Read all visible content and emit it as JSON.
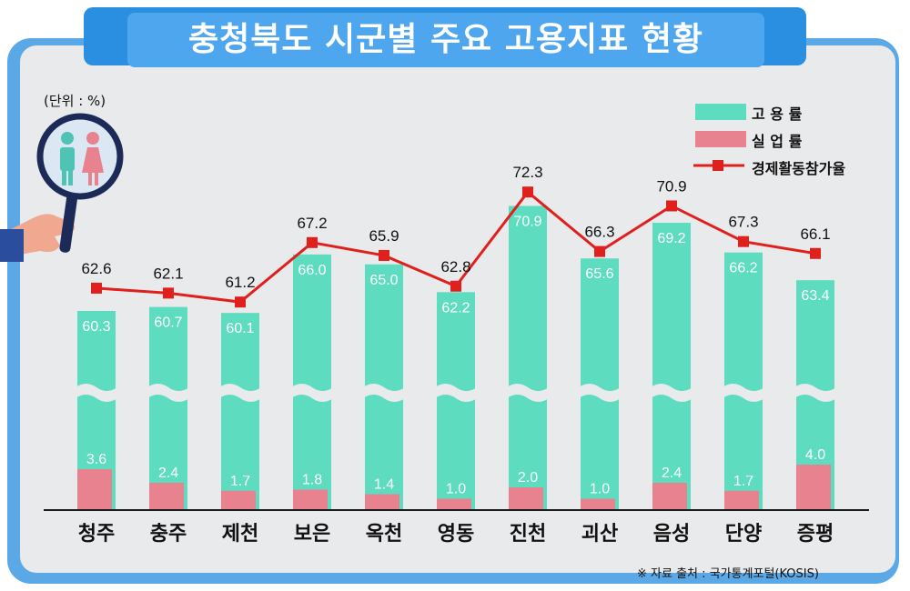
{
  "title": "충청북도 시군별 주요 고용지표 현황",
  "unit_label": "(단위 : %)",
  "source": "※  자료 출처 : 국가통계포털(KOSIS)",
  "colors": {
    "employment": "#5ddcc0",
    "unemployment": "#e9828f",
    "participation": "#e0201c",
    "frame": "#5aa8e6",
    "panel": "#e9eaec"
  },
  "icons": [
    "magnifier-icon",
    "male-person-icon",
    "female-person-icon",
    "hand-icon"
  ],
  "legend": [
    {
      "label": "고 용 률",
      "kind": "bar",
      "color": "#5ddcc0"
    },
    {
      "label": "실 업 률",
      "kind": "bar",
      "color": "#e9828f"
    },
    {
      "label": "경제활동참가율",
      "kind": "line",
      "color": "#e0201c"
    }
  ],
  "chart_data": {
    "type": "bar",
    "axis_broken": true,
    "gridlines": false,
    "legend_position": "top-right",
    "categories": [
      "청주",
      "충주",
      "제천",
      "보은",
      "옥천",
      "영동",
      "진천",
      "괴산",
      "음성",
      "단양",
      "증평"
    ],
    "series": [
      {
        "name": "고 용 률",
        "type": "bar",
        "values": [
          60.3,
          60.7,
          60.1,
          66.0,
          65.0,
          62.2,
          70.9,
          65.6,
          69.2,
          66.2,
          63.4
        ]
      },
      {
        "name": "실 업 률",
        "type": "bar",
        "values": [
          3.6,
          2.4,
          1.7,
          1.8,
          1.4,
          1.0,
          2.0,
          1.0,
          2.4,
          1.7,
          4.0
        ]
      },
      {
        "name": "경제활동참가율",
        "type": "line",
        "values": [
          62.6,
          62.1,
          61.2,
          67.2,
          65.9,
          62.8,
          72.3,
          66.3,
          70.9,
          67.3,
          66.1
        ]
      }
    ]
  }
}
